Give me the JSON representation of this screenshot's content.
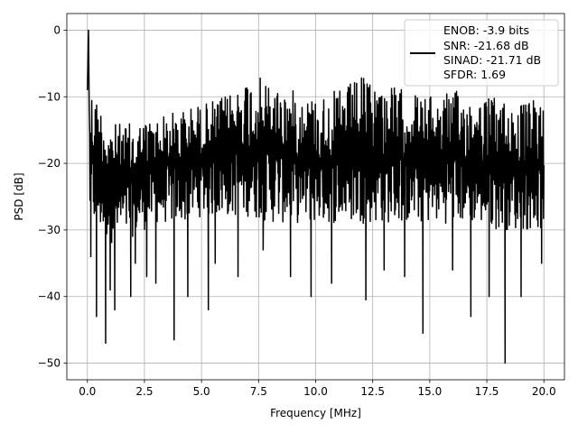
{
  "chart_data": {
    "type": "line",
    "xlabel": "Frequency [MHz]",
    "ylabel": "PSD [dB]",
    "xlim": [
      -0.9,
      20.9
    ],
    "ylim": [
      -52.5,
      2.5
    ],
    "xticks": [
      0.0,
      2.5,
      5.0,
      7.5,
      10.0,
      12.5,
      15.0,
      17.5,
      20.0
    ],
    "xtick_labels": [
      "0.0",
      "2.5",
      "5.0",
      "7.5",
      "10.0",
      "12.5",
      "15.0",
      "17.5",
      "20.0"
    ],
    "yticks": [
      0,
      -10,
      -20,
      -30,
      -40,
      -50
    ],
    "ytick_labels": [
      "0",
      "−10",
      "−20",
      "−30",
      "−40",
      "−50"
    ],
    "grid": true,
    "legend_position": "top-right",
    "line_color": "#000000",
    "series": [
      {
        "legend_lines": [
          "ENOB: -3.9 bits",
          "SNR: -21.68 dB",
          "SINAD: -21.71 dB",
          "SFDR: 1.69"
        ],
        "description": "Noise-like PSD spanning 0–20 MHz; dense black trace mostly between about -13 and -28 dB with deep nulls; single peak at 0 dB near 0 MHz",
        "peak": {
          "x": 0.05,
          "y": 0.0
        },
        "upper_envelope": [
          [
            0.1,
            -8
          ],
          [
            1.0,
            -14
          ],
          [
            2.0,
            -14
          ],
          [
            3.0,
            -13
          ],
          [
            4.0,
            -12
          ],
          [
            5.0,
            -11
          ],
          [
            6.0,
            -10
          ],
          [
            7.0,
            -7
          ],
          [
            7.5,
            -7
          ],
          [
            8.0,
            -8
          ],
          [
            9.0,
            -9
          ],
          [
            10.0,
            -10
          ],
          [
            11.0,
            -9
          ],
          [
            12.0,
            -7
          ],
          [
            13.0,
            -8
          ],
          [
            14.0,
            -9
          ],
          [
            15.0,
            -10
          ],
          [
            16.0,
            -9
          ],
          [
            17.0,
            -10
          ],
          [
            18.0,
            -10
          ],
          [
            19.0,
            -11
          ],
          [
            20.0,
            -10
          ]
        ],
        "lower_envelope": [
          [
            0.1,
            -29
          ],
          [
            1.0,
            -32
          ],
          [
            2.0,
            -31
          ],
          [
            3.0,
            -29
          ],
          [
            4.0,
            -29
          ],
          [
            5.0,
            -28
          ],
          [
            6.0,
            -28
          ],
          [
            7.0,
            -28
          ],
          [
            8.0,
            -29
          ],
          [
            9.0,
            -29
          ],
          [
            10.0,
            -29
          ],
          [
            11.0,
            -29
          ],
          [
            12.0,
            -29
          ],
          [
            13.0,
            -29
          ],
          [
            14.0,
            -29
          ],
          [
            15.0,
            -29
          ],
          [
            16.0,
            -29
          ],
          [
            17.0,
            -29
          ],
          [
            18.0,
            -30
          ],
          [
            19.0,
            -30
          ],
          [
            20.0,
            -30
          ]
        ],
        "deep_nulls": [
          [
            0.15,
            -34
          ],
          [
            0.4,
            -43
          ],
          [
            0.8,
            -47
          ],
          [
            1.0,
            -39
          ],
          [
            1.2,
            -42
          ],
          [
            1.9,
            -40
          ],
          [
            2.1,
            -35
          ],
          [
            2.6,
            -37
          ],
          [
            3.0,
            -38
          ],
          [
            3.8,
            -46.5
          ],
          [
            4.4,
            -40
          ],
          [
            5.3,
            -42
          ],
          [
            5.6,
            -35
          ],
          [
            6.6,
            -37
          ],
          [
            7.7,
            -33
          ],
          [
            8.9,
            -37
          ],
          [
            9.8,
            -40
          ],
          [
            10.7,
            -38
          ],
          [
            12.2,
            -40.5
          ],
          [
            13.0,
            -36
          ],
          [
            13.9,
            -37
          ],
          [
            14.7,
            -45.5
          ],
          [
            16.0,
            -36
          ],
          [
            16.8,
            -43
          ],
          [
            17.6,
            -40
          ],
          [
            18.3,
            -50
          ],
          [
            19.0,
            -40
          ],
          [
            19.9,
            -35
          ]
        ]
      }
    ]
  }
}
